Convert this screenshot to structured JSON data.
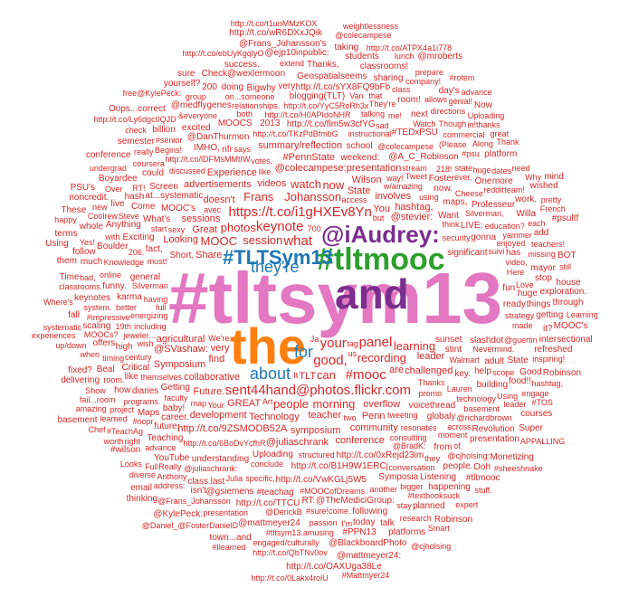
{
  "colors": {
    "pink": "#e377c2",
    "orange": "#ff7f0e",
    "purple": "#7b2e8e",
    "green": "#2ca02c",
    "blue": "#1f77b4",
    "red": "#d62728",
    "dark": "#7f1f2a"
  },
  "cloud": {
    "big": [
      {
        "text": "#tltsym13",
        "color": "pink"
      },
      {
        "text": "the",
        "color": "orange"
      },
      {
        "text": "and",
        "color": "purple"
      },
      {
        "text": "#tltmooc",
        "color": "green"
      },
      {
        "text": "#TLTSym13",
        "color": "blue"
      },
      {
        "text": "@iAudrey:",
        "color": "purple"
      },
      {
        "text": "they're",
        "color": "blue"
      },
      {
        "text": "about",
        "color": "blue"
      },
      {
        "text": "for",
        "color": "blue"
      }
    ],
    "red": [
      "your",
      "what",
      "good,",
      "keynote",
      "panel",
      "https://t.co/i1gHXEv8Yn",
      "sent44hand@photos.flickr.com",
      "#mooc",
      "session",
      "Johansson",
      "recording",
      "photos",
      "morning",
      "MOOC",
      "people",
      "can",
      "learning",
      "Frans",
      "watch",
      "now",
      "You",
      "are",
      "TLT",
      "very",
      "find",
      "teacher",
      "videos",
      "State",
      "overflow",
      "Share",
      "Technology",
      "@colecampese:",
      "symposium",
      "collaborative",
      "involves",
      "challenged",
      "GREAT",
      "leader",
      "Penn",
      "#PennState",
      "Wilson",
      "@juliaschrank",
      "@SVashaw:",
      "@stevier:",
      "sessions",
      "advertisements",
      "http://t.co/9ZSMODB52A",
      "Great",
      "doesn't",
      "presentation",
      "agricultural",
      "community",
      "hashtag,",
      "conference",
      "Symposium",
      "summary/reflection",
      "development",
      "Future.",
      "Experience",
      "Looking"
    ],
    "small": [
      "weekend:",
      "w/amazing",
      "tweeting",
      "votes.",
      "Thanks",
      "sunset",
      "structured",
      "voicethread",
      "significant",
      "Uploading",
      "Short,",
      "http://t.co/TKzPdBfmbG",
      "Your",
      "http://t.co/B1H9W1ERCj",
      "security",
      "Silverman",
      "http://t.co/flm5w3cfYG",
      "Tweet",
      "sexy",
      "stint",
      "http://t.co/6BoDvYcfhR",
      "Want",
      "http://t.co/lDFMsMMtIW",
      "http://t.co/0xRejd23im",
      "school",
      "think",
      "way!",
      "promo",
      "MOOC's",
      "Getting",
      "energizing",
      "resonates",
      "Walmart",
      "using",
      "http://t.co/VwKGLj5W5",
      "consulting",
      "general",
      "must!",
      "http://t.co/H0APIdoNHR",
      "instructional",
      "having",
      "including",
      "@A_C_Robinson",
      "conclude",
      "tag",
      "map",
      "says",
      "themselves",
      "Lauren",
      "globaly",
      "key.",
      "@colecampese",
      "at...systematic",
      "now.",
      "faculty",
      "maps,",
      "stream",
      "What's",
      "slashdot",
      "LIVE:",
      "discussed",
      "@DanThurmon",
      "understanding",
      "fact,",
      "Foster",
      "Exciting",
      "http://t.co/YyC5ReRh3x",
      "Nevermind.",
      "IMHO,",
      "career.",
      "access",
      "wish",
      "MOOCS",
      "@BradK:",
      "218!",
      "Cheese",
      "specific,",
      "gonna",
      "baby!",
      "Art",
      "help",
      "conversation",
      "jeweler...",
      "#MOOCofDreams",
      "Knowledge",
      "two",
      "@juliaschrank:",
      "2013",
      "Ja",
      "technology",
      "century",
      "diaries",
      "#TEDxPSU",
      "moment",
      "Screen",
      "suivi",
      "karma",
      "like.",
      "blogging(TLT)",
      "206.",
      "ever.",
      "Come",
      "talking",
      "better",
      "Symposia",
      "@TheMediciGroup:",
      "relationships.",
      "We're",
      "#teachag",
      "us",
      "building",
      "across",
      "from",
      "Professeur",
      "Critical",
      "19th",
      "Julia",
      "http://t.co/sYX8FQ9bFb",
      "basement",
      "#impressive",
      "high",
      "on...someone",
      "programs.",
      "me!",
      "funny.",
      "adult",
      "education?",
      "@richardbrown",
      "both",
      "future",
      "Anything",
      "Silverman,",
      "700",
      "enjoyed",
      "fun",
      "Here",
      "strategy",
      "could",
      "Steve",
      "http://t.co/TTCU",
      "Boulder",
      "@gsiemens",
      "they",
      "Maps",
      "Teaching",
      "Begins!",
      "excited",
      "like",
      "start",
      "state",
      "with",
      "Love",
      "ready",
      "another",
      "&everyone",
      "scope",
      "Van",
      "(Please",
      "coursera",
      "They're",
      "One",
      "It",
      "advance",
      "State",
      "class.last",
      "system.",
      "Watch",
      "#sure!come.",
      "how",
      "of.",
      "online",
      "has",
      "that",
      "#senior",
      "next",
      "@cjholsing:",
      "bigger",
      "made",
      "@DerickB",
      "Bigwhy",
      "Geospatialseems",
      "offers",
      "timing",
      "following",
      "room!",
      "reddit",
      "video,",
      "@medflygenes",
      "@guertin",
      "Using",
      "sad",
      "hash",
      "#psu",
      "Listening",
      "Though",
      "passion",
      "people.",
      "huge",
      "MOOCs?",
      "@mattmeyer24",
      "Check@wexlermoon",
      "commercial",
      "#nopr",
      "RT!",
      "Really",
      "Boyardee",
      "@Frans_Johansson",
      "huge",
      "project",
      "presentation",
      "Revolution",
      "live",
      "happening",
      "directions",
      "keynotes",
      "very",
      "much",
      "presentation",
      "YouTube",
      "Thanks,",
      "#textbooksuck",
      "room.",
      "billion",
      "really",
      "Beal",
      "food!!",
      "Coolrew",
      "isn't",
      "scaling",
      "Willa",
      "today",
      "things",
      "team!",
      "more",
      "stay",
      "classrooms.",
      "group",
      "leader",
      "Anthony",
      "#TeachAg",
      "yammer",
      "mayor",
      "dates",
      "allows",
      "#tltsym13.amusing",
      "bad,",
      "rifr",
      "Over",
      "platform",
      "semester",
      "new",
      "class",
      "classrooms!",
      "full",
      "200",
      "when",
      "Good",
      "sharing",
      "extend",
      "@ejp10inpublic:",
      "follow",
      "Along",
      "add",
      "undergrad",
      "refreshed",
      "planned",
      "teachers!",
      "whole",
      "fail...room",
      "#PPN13",
      "right",
      "getting",
      "it?",
      "research",
      "doing",
      "in!thanks",
      "each",
      "Full",
      "work.",
      "stop",
      "engaged/culturally",
      "Yes!",
      "address:",
      "success.",
      "missing",
      "company!",
      "#tltmooc",
      "engage",
      "#wilson",
      "@BlackboardPhoto",
      "http://t.co/QbTNv0ov",
      "fixed?",
      "http://t.co/Ly6dgc0QJD",
      "but",
      "@Frans_Johansson's",
      "Ooh",
      "students",
      "inspiring!",
      "génial!",
      "delivering",
      "courses",
      "check",
      "@Daniel_@FosterDanielD",
      "@mattmeyer24:",
      "fall",
      "need",
      "Show",
      "platforms",
      "http://t.co/wR6DXxJQik",
      "@KylePeck:",
      "conference",
      "day's",
      "exploration.",
      "Monetizing",
      "Time",
      "Uploading",
      "yourself?",
      "noncredit.",
      "MOOC's",
      "diverse",
      "hashtag,",
      "learned",
      "intersectional",
      "systematic",
      "taking",
      "Looks",
      "http://t.co/OAXUga38Le",
      "Where's",
      "Oops...correct",
      "http://t.co/ebUyKgqlyO",
      "http://t.co/t1unMMzKOX",
      "town...and",
      "up/down",
      "Super",
      "http://t.co/0Lakx4rolU",
      "them",
      "Thank",
      "worth",
      "PSU's",
      "free@KylePeck:",
      "French",
      "prepare",
      "amazing",
      "lunch",
      "avec",
      "Robinson",
      "Robinson",
      "Why",
      "wished",
      "These",
      "terms",
      "stuff.",
      "great",
      "still",
      "sure",
      "house",
      "Chef",
      "I'm",
      "experiences",
      "through",
      "email",
      "Smart",
      "BOT",
      "expert",
      "advance",
      "talk",
      "Now",
      "basement",
      "@colecampese",
      "#TOS",
      "Using",
      "weightlessness",
      "@Frans_Johansson",
      "#Ilearned",
      "Johansson!",
      "http://t.co/AT9Ac4IaL",
      "http://t.co/Y7XgcN7xmX",
      "http://t.co/YKt4YazF8",
      "APPALLING",
      "@crackdshell:",
      "@mroberts",
      "mind",
      "pretty",
      "http://t.co/9Sqgi8bPnl",
      "http://t.co/ATPX4a1i778",
      "#psultf",
      "#rotem",
      "RT:",
      "Learning",
      "@cjholsing",
      "#Mattmyer24",
      "#sheeshnake",
      "happy",
      "http://t.co/yi3sDPAn",
      "@dollarbarpsu",
      "thinking",
      "http://t.co/Wm8Ub"
    ]
  }
}
